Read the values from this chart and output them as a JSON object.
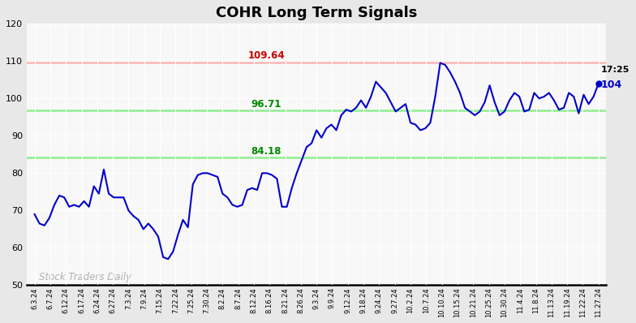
{
  "title": "COHR Long Term Signals",
  "hline_red": 109.64,
  "hline_red_color": "#ffb3b3",
  "hline_green_upper": 96.71,
  "hline_green_lower": 84.18,
  "hline_green_color": "#90ee90",
  "label_red": "109.64",
  "label_green_upper": "96.71",
  "label_green_lower": "84.18",
  "label_red_color": "#cc0000",
  "label_green_color": "#008800",
  "annotation_time": "17:25",
  "annotation_price": "104",
  "annotation_color": "#0000cc",
  "line_color": "#0000cc",
  "watermark": "Stock Traders Daily",
  "watermark_color": "#b0b0b0",
  "ylim_min": 50,
  "ylim_max": 120,
  "yticks": [
    50,
    60,
    70,
    80,
    90,
    100,
    110,
    120
  ],
  "plot_bg": "#f8f8f8",
  "fig_bg": "#e8e8e8",
  "x_labels": [
    "6.3.24",
    "6.7.24",
    "6.12.24",
    "6.17.24",
    "6.24.24",
    "6.27.24",
    "7.3.24",
    "7.9.24",
    "7.15.24",
    "7.22.24",
    "7.25.24",
    "7.30.24",
    "8.2.24",
    "8.7.24",
    "8.12.24",
    "8.16.24",
    "8.21.24",
    "8.26.24",
    "9.3.24",
    "9.9.24",
    "9.12.24",
    "9.18.24",
    "9.24.24",
    "9.27.24",
    "10.2.24",
    "10.7.24",
    "10.10.24",
    "10.15.24",
    "10.21.24",
    "10.25.24",
    "10.30.24",
    "11.4.24",
    "11.8.24",
    "11.13.24",
    "11.19.24",
    "11.22.24",
    "11.27.24"
  ],
  "y_values": [
    69.0,
    66.5,
    66.0,
    68.0,
    71.5,
    74.0,
    73.5,
    71.0,
    71.5,
    71.0,
    72.5,
    71.0,
    76.5,
    74.5,
    81.0,
    74.5,
    73.5,
    73.5,
    73.5,
    70.0,
    68.5,
    67.5,
    65.0,
    66.5,
    65.0,
    63.0,
    57.5,
    57.0,
    59.0,
    63.5,
    67.5,
    65.5,
    77.0,
    79.5,
    80.0,
    80.0,
    79.5,
    79.0,
    74.5,
    73.5,
    71.5,
    71.0,
    71.5,
    75.5,
    76.0,
    75.5,
    80.0,
    80.0,
    79.5,
    78.5,
    71.0,
    71.0,
    76.0,
    80.0,
    83.5,
    87.0,
    88.0,
    91.5,
    89.5,
    92.0,
    93.0,
    91.5,
    95.5,
    97.0,
    96.5,
    97.5,
    99.5,
    97.5,
    100.5,
    104.5,
    103.0,
    101.5,
    99.0,
    96.5,
    97.5,
    98.5,
    93.5,
    93.0,
    91.5,
    92.0,
    93.5,
    100.5,
    109.5,
    109.0,
    107.0,
    104.5,
    101.5,
    97.5,
    96.5,
    95.5,
    96.5,
    99.0,
    103.5,
    99.0,
    95.5,
    96.5,
    99.5,
    101.5,
    100.5,
    96.5,
    97.0,
    101.5,
    100.0,
    100.5,
    101.5,
    99.5,
    97.0,
    97.5,
    101.5,
    100.5,
    96.0,
    101.0,
    98.5,
    100.5,
    104.0
  ]
}
